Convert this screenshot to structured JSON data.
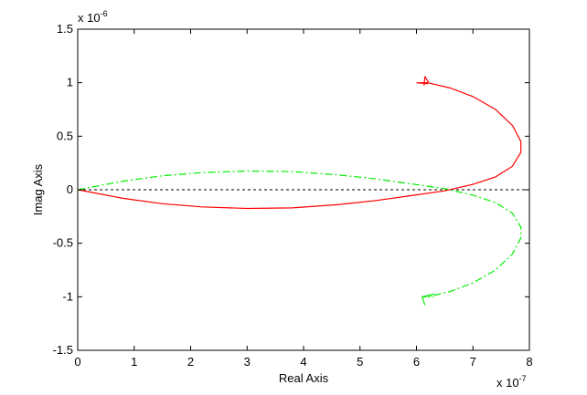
{
  "chart_data": {
    "type": "line",
    "title": "",
    "xlabel": "Real Axis",
    "ylabel": "Imag Axis",
    "x_scale_label": "x 10",
    "x_scale_exponent": "-7",
    "y_scale_label": "x 10",
    "y_scale_exponent": "-6",
    "xlim": [
      0,
      8
    ],
    "ylim": [
      -1.5,
      1.5
    ],
    "x_ticks": [
      0,
      1,
      2,
      3,
      4,
      5,
      6,
      7,
      8
    ],
    "x_tick_labels": [
      "0",
      "1",
      "2",
      "3",
      "4",
      "5",
      "6",
      "7",
      "8"
    ],
    "y_ticks": [
      -1.5,
      -1,
      -0.5,
      0,
      0.5,
      1,
      1.5
    ],
    "y_tick_labels": [
      "-1.5",
      "-1",
      "-0.5",
      "0",
      "0.5",
      "1",
      "1.5"
    ],
    "grid": false,
    "legend": "none",
    "zero_line": {
      "y": 0,
      "color": "#000000",
      "style": "dashed"
    },
    "series": [
      {
        "color": "#ff0000",
        "style": "solid",
        "points": [
          [
            0,
            0
          ],
          [
            0.3,
            -0.03
          ],
          [
            0.8,
            -0.08
          ],
          [
            1.5,
            -0.13
          ],
          [
            2.2,
            -0.16
          ],
          [
            3.0,
            -0.175
          ],
          [
            3.8,
            -0.17
          ],
          [
            4.6,
            -0.14
          ],
          [
            5.3,
            -0.1
          ],
          [
            5.9,
            -0.055
          ],
          [
            6.5,
            -0.01
          ],
          [
            7.0,
            0.05
          ],
          [
            7.4,
            0.12
          ],
          [
            7.7,
            0.22
          ],
          [
            7.85,
            0.35
          ],
          [
            7.85,
            0.45
          ],
          [
            7.7,
            0.6
          ],
          [
            7.4,
            0.75
          ],
          [
            7.0,
            0.87
          ],
          [
            6.6,
            0.95
          ],
          [
            6.2,
            1.0
          ],
          [
            6.0,
            1.0
          ],
          [
            6.2,
            0.99
          ]
        ],
        "arrow_tip": [
          6.15,
          1.06
        ]
      },
      {
        "color": "#00ee00",
        "style": "dashdot",
        "points": [
          [
            0,
            0
          ],
          [
            0.3,
            0.03
          ],
          [
            0.8,
            0.08
          ],
          [
            1.5,
            0.13
          ],
          [
            2.2,
            0.16
          ],
          [
            3.0,
            0.175
          ],
          [
            3.8,
            0.17
          ],
          [
            4.6,
            0.14
          ],
          [
            5.3,
            0.1
          ],
          [
            5.9,
            0.055
          ],
          [
            6.5,
            0.01
          ],
          [
            7.0,
            -0.05
          ],
          [
            7.4,
            -0.12
          ],
          [
            7.7,
            -0.22
          ],
          [
            7.85,
            -0.35
          ],
          [
            7.85,
            -0.45
          ],
          [
            7.7,
            -0.6
          ],
          [
            7.4,
            -0.75
          ],
          [
            7.0,
            -0.87
          ],
          [
            6.6,
            -0.95
          ],
          [
            6.2,
            -1.0
          ],
          [
            6.1,
            -1.0
          ],
          [
            6.3,
            -1.0
          ]
        ],
        "arrow_tip": [
          6.1,
          -1.0
        ]
      }
    ]
  }
}
